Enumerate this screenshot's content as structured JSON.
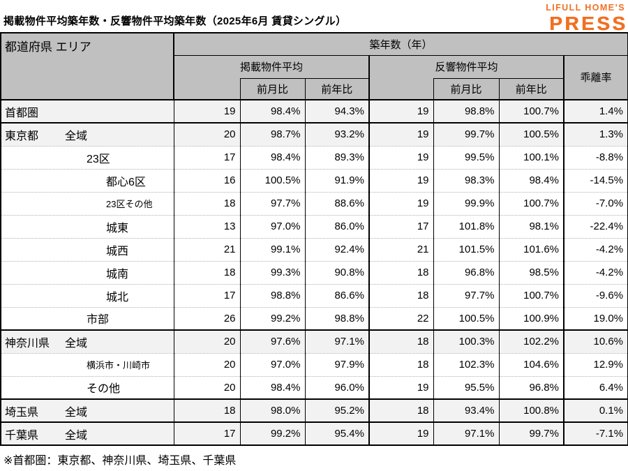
{
  "title": "掲載物件平均築年数・反響物件平均築年数（2025年6月 賃貸シングル）",
  "logo": {
    "line1": "LIFULL HOME’S",
    "line2": "PRESS",
    "color": "#f26f21"
  },
  "colors": {
    "header_bg": "#c0c0c0",
    "shaded_row_bg": "#f2f2f2",
    "border": "#000000",
    "dotted_divider": "#b0b0b0",
    "logo_orange": "#f26f21"
  },
  "table": {
    "corner": "都道府県 エリア",
    "span_header": "築年数（年）",
    "group_listed": "掲載物件平均",
    "group_responded": "反響物件平均",
    "divergence": "乖離率",
    "mom": "前月比",
    "yoy": "前年比"
  },
  "footnote": "※首都圏：東京都、神奈川県、埼玉県、千葉県",
  "chart_data": {
    "type": "table",
    "title": "掲載物件平均築年数・反響物件平均築年数（2025年6月 賃貸シングル）",
    "columns": [
      "都道府県 エリア",
      "掲載物件平均 築年数(年)",
      "掲載物件平均 前月比",
      "掲載物件平均 前年比",
      "反響物件平均 築年数(年)",
      "反響物件平均 前月比",
      "反響物件平均 前年比",
      "乖離率"
    ],
    "rows": [
      {
        "area": "首都圏",
        "sub": "",
        "indent": 0,
        "shaded": true,
        "section": true,
        "small": false,
        "values": [
          "19",
          "98.4%",
          "94.3%",
          "19",
          "98.8%",
          "100.7%",
          "1.4%"
        ]
      },
      {
        "area": "東京都",
        "sub": "全域",
        "indent": 0,
        "shaded": true,
        "section": true,
        "small": false,
        "values": [
          "20",
          "98.7%",
          "93.2%",
          "19",
          "99.7%",
          "100.5%",
          "1.3%"
        ]
      },
      {
        "area": "23区",
        "sub": "",
        "indent": 1,
        "shaded": false,
        "section": false,
        "small": false,
        "values": [
          "17",
          "98.4%",
          "89.3%",
          "19",
          "99.5%",
          "100.1%",
          "-8.8%"
        ]
      },
      {
        "area": "都心6区",
        "sub": "",
        "indent": 2,
        "shaded": false,
        "section": false,
        "small": false,
        "values": [
          "16",
          "100.5%",
          "91.9%",
          "19",
          "98.3%",
          "98.4%",
          "-14.5%"
        ]
      },
      {
        "area": "23区その他",
        "sub": "",
        "indent": 2,
        "shaded": false,
        "section": false,
        "small": true,
        "values": [
          "18",
          "97.7%",
          "88.6%",
          "19",
          "99.9%",
          "100.7%",
          "-7.0%"
        ]
      },
      {
        "area": "城東",
        "sub": "",
        "indent": 2,
        "shaded": false,
        "section": false,
        "small": false,
        "values": [
          "13",
          "97.0%",
          "86.0%",
          "17",
          "101.8%",
          "98.1%",
          "-22.4%"
        ]
      },
      {
        "area": "城西",
        "sub": "",
        "indent": 2,
        "shaded": false,
        "section": false,
        "small": false,
        "values": [
          "21",
          "99.1%",
          "92.4%",
          "21",
          "101.5%",
          "101.6%",
          "-4.2%"
        ]
      },
      {
        "area": "城南",
        "sub": "",
        "indent": 2,
        "shaded": false,
        "section": false,
        "small": false,
        "values": [
          "18",
          "99.3%",
          "90.8%",
          "18",
          "96.8%",
          "98.5%",
          "-4.2%"
        ]
      },
      {
        "area": "城北",
        "sub": "",
        "indent": 2,
        "shaded": false,
        "section": false,
        "small": false,
        "values": [
          "17",
          "98.8%",
          "86.6%",
          "18",
          "97.7%",
          "100.7%",
          "-9.6%"
        ]
      },
      {
        "area": "市部",
        "sub": "",
        "indent": 1,
        "shaded": false,
        "section": false,
        "small": false,
        "values": [
          "26",
          "99.2%",
          "98.8%",
          "22",
          "100.5%",
          "100.9%",
          "19.0%"
        ]
      },
      {
        "area": "神奈川県",
        "sub": "全域",
        "indent": 0,
        "shaded": true,
        "section": true,
        "small": false,
        "values": [
          "20",
          "97.6%",
          "97.1%",
          "18",
          "100.3%",
          "102.2%",
          "10.6%"
        ]
      },
      {
        "area": "横浜市・川崎市",
        "sub": "",
        "indent": 1,
        "shaded": false,
        "section": false,
        "small": true,
        "values": [
          "20",
          "97.0%",
          "97.9%",
          "18",
          "102.3%",
          "104.6%",
          "12.9%"
        ]
      },
      {
        "area": "その他",
        "sub": "",
        "indent": 1,
        "shaded": false,
        "section": false,
        "small": false,
        "values": [
          "20",
          "98.4%",
          "96.0%",
          "19",
          "95.5%",
          "96.8%",
          "6.4%"
        ]
      },
      {
        "area": "埼玉県",
        "sub": "全域",
        "indent": 0,
        "shaded": true,
        "section": true,
        "small": false,
        "values": [
          "18",
          "98.0%",
          "95.2%",
          "18",
          "93.4%",
          "100.8%",
          "0.1%"
        ]
      },
      {
        "area": "千葉県",
        "sub": "全域",
        "indent": 0,
        "shaded": true,
        "section": true,
        "small": false,
        "values": [
          "17",
          "99.2%",
          "95.4%",
          "19",
          "97.1%",
          "99.7%",
          "-7.1%"
        ]
      }
    ]
  }
}
